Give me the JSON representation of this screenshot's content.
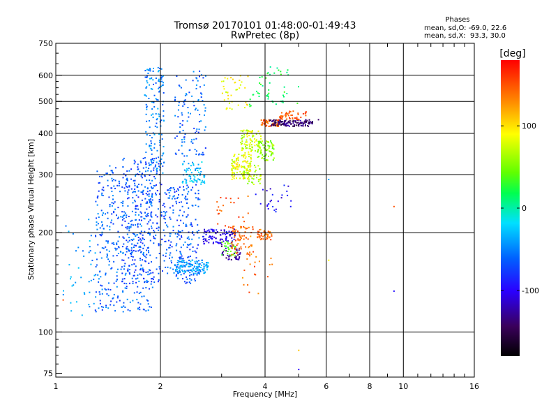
{
  "chart_data": {
    "type": "scatter",
    "title": "Tromsø 20170101 01:48:00-01:49:43",
    "subtitle": "RwPretec (8p)",
    "xlabel": "Frequency [MHz]",
    "ylabel": "Stationary phase Virtual Height [km]",
    "x_scale": "log",
    "y_scale": "log",
    "xlim": [
      1,
      16
    ],
    "ylim": [
      73,
      750
    ],
    "x_ticks": [
      1,
      2,
      4,
      6,
      8,
      10,
      16
    ],
    "y_ticks": [
      75,
      100,
      200,
      300,
      400,
      500,
      600,
      750
    ],
    "grid": true,
    "phase_stats": {
      "heading": "Phases",
      "line_O": "mean, sd,O: -69.0, 22.6",
      "line_X": "mean, sd,X:  93.3, 30.0"
    },
    "colorbar": {
      "label": "[deg]",
      "min": -180,
      "max": 180,
      "ticks": [
        100,
        0,
        -100
      ],
      "colormap": "rainbow (black-purple-blue-cyan-green-yellow-red)"
    },
    "clusters": [
      {
        "f": [
          1.05,
          1.3
        ],
        "h": [
          105,
          220
        ],
        "phase": -40,
        "n": 40
      },
      {
        "f": [
          1.3,
          1.9
        ],
        "h": [
          115,
          320
        ],
        "phase": -60,
        "n": 420
      },
      {
        "f": [
          1.55,
          2.05
        ],
        "h": [
          140,
          340
        ],
        "phase": -70,
        "n": 260
      },
      {
        "f": [
          1.8,
          2.05
        ],
        "h": [
          300,
          640
        ],
        "phase": -50,
        "n": 150
      },
      {
        "f": [
          2.05,
          2.6
        ],
        "h": [
          140,
          280
        ],
        "phase": -65,
        "n": 230
      },
      {
        "f": [
          2.2,
          2.75
        ],
        "h": [
          150,
          165
        ],
        "phase": -40,
        "n": 120
      },
      {
        "f": [
          2.3,
          2.7
        ],
        "h": [
          280,
          330
        ],
        "phase": -30,
        "n": 70
      },
      {
        "f": [
          2.2,
          2.7
        ],
        "h": [
          340,
          620
        ],
        "phase": -60,
        "n": 110
      },
      {
        "f": [
          2.65,
          3.3
        ],
        "h": [
          185,
          205
        ],
        "phase": -100,
        "n": 90
      },
      {
        "f": [
          3.0,
          3.3
        ],
        "h": [
          170,
          190
        ],
        "phase": 40,
        "n": 30
      },
      {
        "f": [
          3.0,
          3.4
        ],
        "h": [
          165,
          185
        ],
        "phase": -130,
        "n": 40
      },
      {
        "f": [
          3.2,
          3.7
        ],
        "h": [
          170,
          210
        ],
        "phase": 140,
        "n": 70
      },
      {
        "f": [
          3.8,
          4.2
        ],
        "h": [
          190,
          205
        ],
        "phase": 140,
        "n": 45
      },
      {
        "f": [
          3.2,
          3.65
        ],
        "h": [
          290,
          350
        ],
        "phase": 85,
        "n": 110
      },
      {
        "f": [
          3.45,
          3.9
        ],
        "h": [
          280,
          320
        ],
        "phase": 65,
        "n": 45
      },
      {
        "f": [
          3.4,
          3.9
        ],
        "h": [
          350,
          410
        ],
        "phase": 75,
        "n": 90
      },
      {
        "f": [
          3.8,
          4.25
        ],
        "h": [
          330,
          380
        ],
        "phase": 55,
        "n": 70
      },
      {
        "f": [
          3.9,
          4.4
        ],
        "h": [
          420,
          440
        ],
        "phase": 150,
        "n": 60
      },
      {
        "f": [
          4.1,
          5.5
        ],
        "h": [
          420,
          440
        ],
        "phase": -140,
        "n": 120
      },
      {
        "f": [
          4.4,
          5.3
        ],
        "h": [
          440,
          470
        ],
        "phase": 150,
        "n": 45
      },
      {
        "f": [
          3.0,
          3.6
        ],
        "h": [
          470,
          600
        ],
        "phase": 90,
        "n": 40
      },
      {
        "f": [
          3.6,
          5.0
        ],
        "h": [
          480,
          640
        ],
        "phase": 20,
        "n": 50
      },
      {
        "f": [
          3.6,
          4.8
        ],
        "h": [
          230,
          280
        ],
        "phase": -100,
        "n": 25
      },
      {
        "f": [
          2.9,
          3.6
        ],
        "h": [
          205,
          260
        ],
        "phase": 150,
        "n": 25
      },
      {
        "f": [
          3.4,
          4.2
        ],
        "h": [
          130,
          170
        ],
        "phase": 140,
        "n": 18
      }
    ],
    "isolated_points": [
      {
        "f": 6.1,
        "h": 290,
        "phase": -40
      },
      {
        "f": 6.1,
        "h": 165,
        "phase": 90
      },
      {
        "f": 9.4,
        "h": 240,
        "phase": 150
      },
      {
        "f": 9.4,
        "h": 133,
        "phase": -95
      },
      {
        "f": 5.0,
        "h": 88,
        "phase": 110
      },
      {
        "f": 5.0,
        "h": 77,
        "phase": -100
      },
      {
        "f": 5.7,
        "h": 440,
        "phase": -140
      },
      {
        "f": 1.05,
        "h": 125,
        "phase": 150
      }
    ]
  }
}
